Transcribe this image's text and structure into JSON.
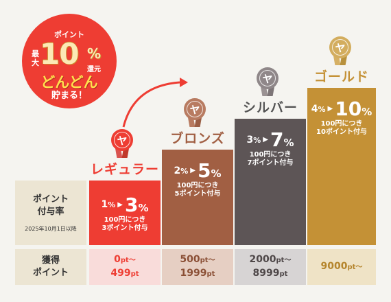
{
  "promo": {
    "line1": "ポイント",
    "left": "最大",
    "big": "10",
    "pct": "%",
    "right": "還元",
    "catch": "どんどん",
    "sub": "貯まる！"
  },
  "rows": {
    "rate_label_1": "ポイント",
    "rate_label_2": "付与率",
    "rate_note": "2025年10月1日以降",
    "points_label_1": "獲得",
    "points_label_2": "ポイント"
  },
  "tiers": [
    {
      "name": "レギュラー",
      "medal_icon": "ribbon-medal-icon",
      "from": "1",
      "to": "3",
      "desc1": "100円につき",
      "desc2": "3ポイント付与",
      "pts1": "0",
      "pts1u": "pt〜",
      "pts2": "499",
      "pts2u": "pt",
      "color": "#ee3d33"
    },
    {
      "name": "ブロンズ",
      "medal_icon": "ribbon-medal-icon",
      "from": "2",
      "to": "5",
      "desc1": "100円につき",
      "desc2": "5ポイント付与",
      "pts1": "500",
      "pts1u": "pt〜",
      "pts2": "1999",
      "pts2u": "pt",
      "color": "#a15f43"
    },
    {
      "name": "シルバー",
      "medal_icon": "ribbon-medal-icon",
      "from": "3",
      "to": "7",
      "desc1": "100円につき",
      "desc2": "7ポイント付与",
      "pts1": "2000",
      "pts1u": "pt〜",
      "pts2": "8999",
      "pts2u": "pt",
      "color": "#5d5556"
    },
    {
      "name": "ゴールド",
      "medal_icon": "ribbon-medal-icon",
      "from": "4",
      "to": "10",
      "desc1": "100円につき",
      "desc2": "10ポイント付与",
      "pts1": "9000",
      "pts1u": "pt〜",
      "pts2": "",
      "pts2u": "",
      "color": "#c49136"
    }
  ],
  "unit_pct": "%",
  "arrow_icon": "curved-arrow-icon"
}
